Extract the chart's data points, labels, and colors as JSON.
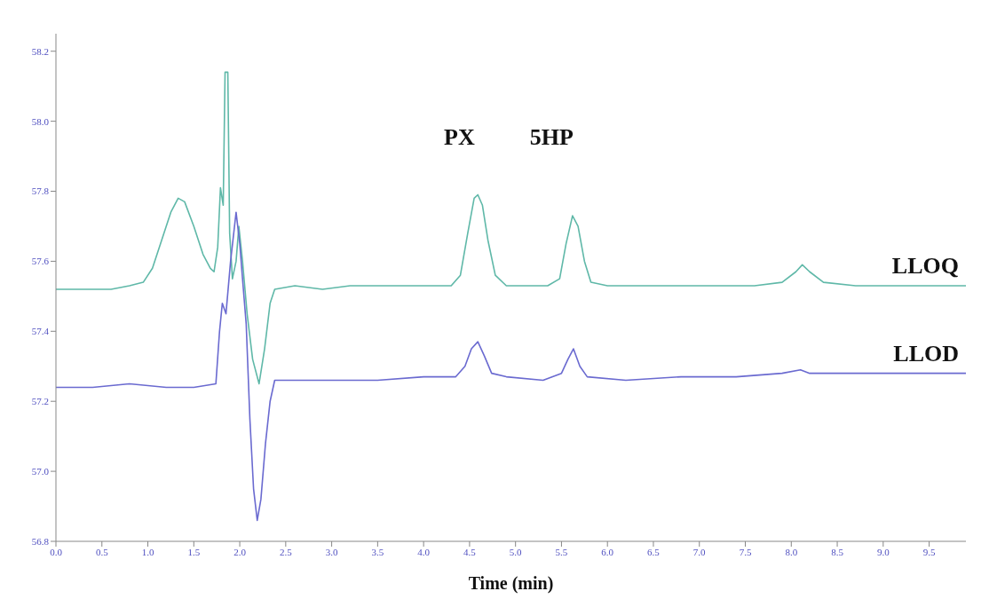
{
  "chart_data": {
    "type": "line",
    "xlabel": "Time (min)",
    "xlim": [
      0,
      9.9
    ],
    "xticks": [
      {
        "value": 0,
        "label": "0.0"
      },
      0.5,
      {
        "value": 1,
        "label": "1.0"
      },
      1.5,
      {
        "value": 2,
        "label": "2.0"
      },
      2.5,
      {
        "value": 3,
        "label": "3.0"
      },
      3.5,
      {
        "value": 4,
        "label": "4.0"
      },
      4.5,
      {
        "value": 5,
        "label": "5.0"
      },
      5.5,
      {
        "value": 6,
        "label": "6.0"
      },
      6.5,
      {
        "value": 7,
        "label": "7.0"
      },
      7.5,
      {
        "value": 8,
        "label": "8.0"
      },
      8.5,
      {
        "value": 9,
        "label": "9.0"
      },
      9.5
    ],
    "ylim": [
      56.8,
      58.25
    ],
    "yticks": [
      56.8,
      {
        "value": 57,
        "label": "57.0"
      },
      57.2,
      57.4,
      57.6,
      57.8,
      {
        "value": 58,
        "label": "58.0"
      },
      58.2
    ],
    "grid": false,
    "legend": false,
    "marker": "none",
    "line_style": "solid",
    "series": [
      {
        "name": "LLOQ",
        "color": "#5fb8a8",
        "x": [
          0,
          0.3,
          0.6,
          0.8,
          0.95,
          1.05,
          1.15,
          1.25,
          1.33,
          1.4,
          1.5,
          1.6,
          1.68,
          1.72,
          1.76,
          1.79,
          1.82,
          1.84,
          1.87,
          1.89,
          1.92,
          1.96,
          1.99,
          2.03,
          2.08,
          2.14,
          2.21,
          2.27,
          2.33,
          2.38,
          2.6,
          2.9,
          3.2,
          3.5,
          3.8,
          4.1,
          4.3,
          4.4,
          4.48,
          4.55,
          4.59,
          4.64,
          4.7,
          4.78,
          4.9,
          5.1,
          5.35,
          5.48,
          5.55,
          5.62,
          5.68,
          5.75,
          5.82,
          6,
          6.4,
          6.8,
          7.2,
          7.6,
          7.9,
          8.05,
          8.12,
          8.2,
          8.35,
          8.7,
          9.2,
          9.9
        ],
        "values": [
          57.52,
          57.52,
          57.52,
          57.53,
          57.54,
          57.58,
          57.66,
          57.74,
          57.78,
          57.77,
          57.7,
          57.62,
          57.58,
          57.57,
          57.64,
          57.81,
          57.76,
          58.14,
          58.14,
          57.68,
          57.55,
          57.6,
          57.7,
          57.6,
          57.45,
          57.32,
          57.25,
          57.35,
          57.48,
          57.52,
          57.53,
          57.52,
          57.53,
          57.53,
          57.53,
          57.53,
          57.53,
          57.56,
          57.68,
          57.78,
          57.79,
          57.76,
          57.66,
          57.56,
          57.53,
          57.53,
          57.53,
          57.55,
          57.65,
          57.73,
          57.7,
          57.6,
          57.54,
          57.53,
          57.53,
          57.53,
          57.53,
          57.53,
          57.54,
          57.57,
          57.59,
          57.57,
          57.54,
          57.53,
          57.53,
          57.53
        ]
      },
      {
        "name": "LLOD",
        "color": "#6a6ad0",
        "x": [
          0,
          0.4,
          0.8,
          1.2,
          1.5,
          1.74,
          1.78,
          1.81,
          1.85,
          1.9,
          1.96,
          2,
          2.03,
          2.07,
          2.11,
          2.15,
          2.19,
          2.23,
          2.28,
          2.33,
          2.38,
          2.7,
          3,
          3.5,
          4,
          4.35,
          4.45,
          4.52,
          4.59,
          4.66,
          4.74,
          4.9,
          5.3,
          5.5,
          5.57,
          5.63,
          5.7,
          5.78,
          6.2,
          6.8,
          7.4,
          7.9,
          8.1,
          8.2,
          8.8,
          9.4,
          9.9
        ],
        "values": [
          57.24,
          57.24,
          57.25,
          57.24,
          57.24,
          57.25,
          57.4,
          57.48,
          57.45,
          57.6,
          57.74,
          57.65,
          57.55,
          57.42,
          57.15,
          56.95,
          56.86,
          56.92,
          57.08,
          57.2,
          57.26,
          57.26,
          57.26,
          57.26,
          57.27,
          57.27,
          57.3,
          57.35,
          57.37,
          57.33,
          57.28,
          57.27,
          57.26,
          57.28,
          57.32,
          57.35,
          57.3,
          57.27,
          57.26,
          57.27,
          57.27,
          57.28,
          57.29,
          57.28,
          57.28,
          57.28,
          57.28
        ]
      }
    ],
    "annotations": [
      "PX",
      "5HP"
    ]
  }
}
